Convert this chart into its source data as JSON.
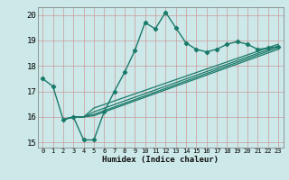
{
  "xlabel": "Humidex (Indice chaleur)",
  "bg_color": "#cce8e8",
  "grid_color": "#aaaaaa",
  "line_color": "#1a7a6a",
  "xlim": [
    -0.5,
    23.5
  ],
  "ylim": [
    14.8,
    20.3
  ],
  "yticks": [
    15,
    16,
    17,
    18,
    19,
    20
  ],
  "xticks": [
    0,
    1,
    2,
    3,
    4,
    5,
    6,
    7,
    8,
    9,
    10,
    11,
    12,
    13,
    14,
    15,
    16,
    17,
    18,
    19,
    20,
    21,
    22,
    23
  ],
  "line1": {
    "x": [
      0,
      1,
      2,
      3,
      4,
      5,
      6,
      7,
      8,
      9,
      10,
      11,
      12,
      13,
      14,
      15,
      16,
      17,
      18,
      19,
      20,
      21,
      22,
      23
    ],
    "y": [
      17.5,
      17.2,
      15.9,
      16.0,
      15.1,
      15.1,
      16.2,
      17.0,
      17.75,
      18.6,
      19.7,
      19.45,
      20.1,
      19.5,
      18.9,
      18.65,
      18.55,
      18.65,
      18.85,
      18.95,
      18.85,
      18.65,
      18.7,
      18.75
    ]
  },
  "fan_lines": [
    {
      "x": [
        2,
        3,
        4,
        5,
        23
      ],
      "y": [
        15.9,
        16.0,
        16.0,
        16.05,
        18.65
      ]
    },
    {
      "x": [
        2,
        3,
        4,
        5,
        23
      ],
      "y": [
        15.9,
        16.0,
        16.0,
        16.1,
        18.72
      ]
    },
    {
      "x": [
        2,
        3,
        4,
        5,
        23
      ],
      "y": [
        15.9,
        16.0,
        16.0,
        16.2,
        18.78
      ]
    },
    {
      "x": [
        2,
        3,
        4,
        5,
        23
      ],
      "y": [
        15.9,
        16.0,
        16.0,
        16.35,
        18.85
      ]
    }
  ]
}
